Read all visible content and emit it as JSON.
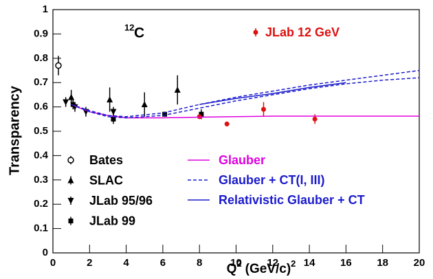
{
  "chart_data": {
    "type": "scatter",
    "y_label": "Transparency",
    "x_label": {
      "base": "Q",
      "power": "2",
      "units": "(GeV/c)",
      "units_power": "2"
    },
    "target": {
      "mass": "12",
      "symbol": "C"
    },
    "xlim": [
      0,
      20
    ],
    "xticks": [
      0,
      2,
      4,
      6,
      8,
      10,
      12,
      14,
      16,
      18,
      20
    ],
    "ylim": [
      0,
      1
    ],
    "yticks": [
      0,
      0.1,
      0.2,
      0.3,
      0.4,
      0.5,
      0.6,
      0.7,
      0.8,
      0.9,
      1
    ],
    "series": [
      {
        "name": "Bates",
        "kind": "points",
        "marker": "open-circle",
        "color": "#000000",
        "x": [
          0.3
        ],
        "values": [
          0.77
        ],
        "errors": [
          0.04
        ]
      },
      {
        "name": "SLAC",
        "kind": "points",
        "marker": "triangle-up",
        "color": "#000000",
        "x": [
          1.0,
          3.1,
          5.0,
          6.8
        ],
        "values": [
          0.64,
          0.63,
          0.61,
          0.67
        ],
        "errors": [
          0.03,
          0.05,
          0.05,
          0.06
        ]
      },
      {
        "name": "JLab 95/96",
        "kind": "points",
        "marker": "triangle-down",
        "color": "#000000",
        "x": [
          0.7,
          1.2,
          1.8,
          3.3
        ],
        "values": [
          0.62,
          0.6,
          0.58,
          0.58
        ],
        "errors": [
          0.02,
          0.02,
          0.02,
          0.02
        ]
      },
      {
        "name": "JLab 99",
        "kind": "points",
        "marker": "square",
        "color": "#000000",
        "x": [
          1.1,
          3.3,
          6.1,
          8.1
        ],
        "values": [
          0.61,
          0.55,
          0.57,
          0.57
        ],
        "errors": [
          0.02,
          0.02,
          0.01,
          0.02
        ]
      },
      {
        "name": "JLab 12 GeV",
        "kind": "points",
        "marker": "dot",
        "color": "#dd1111",
        "x": [
          8.0,
          9.5,
          11.5,
          14.3
        ],
        "values": [
          0.56,
          0.53,
          0.59,
          0.55
        ],
        "errors": [
          0.01,
          0.01,
          0.03,
          0.02
        ]
      },
      {
        "name": "Glauber",
        "kind": "line",
        "dashed": false,
        "color": "#e000e0",
        "x": [
          1,
          2,
          3,
          4,
          6,
          8,
          10,
          12,
          14,
          16,
          18,
          20
        ],
        "values": [
          0.61,
          0.58,
          0.565,
          0.555,
          0.555,
          0.558,
          0.56,
          0.562,
          0.562,
          0.562,
          0.562,
          0.562
        ]
      },
      {
        "name": "Glauber + CT(I, III)",
        "kind": "line",
        "dashed": true,
        "color": "#1a1acc",
        "x": [
          1,
          2,
          3,
          4,
          6,
          8,
          10,
          12,
          14,
          16,
          18,
          20
        ],
        "values": [
          0.61,
          0.585,
          0.565,
          0.56,
          0.575,
          0.61,
          0.64,
          0.665,
          0.69,
          0.71,
          0.73,
          0.75
        ]
      },
      {
        "kind": "line",
        "dashed": true,
        "color": "#1a1acc",
        "x": [
          1,
          2,
          3,
          4,
          6,
          8,
          10,
          12,
          14,
          16,
          18,
          20
        ],
        "values": [
          0.61,
          0.58,
          0.56,
          0.555,
          0.565,
          0.595,
          0.625,
          0.65,
          0.675,
          0.695,
          0.71,
          0.72
        ]
      },
      {
        "name": "Relativistic Glauber + CT",
        "kind": "line",
        "dashed": false,
        "color": "#1a1acc",
        "x": [
          8,
          10,
          12,
          14,
          16
        ],
        "values": [
          0.61,
          0.635,
          0.655,
          0.68,
          0.7
        ]
      }
    ]
  }
}
